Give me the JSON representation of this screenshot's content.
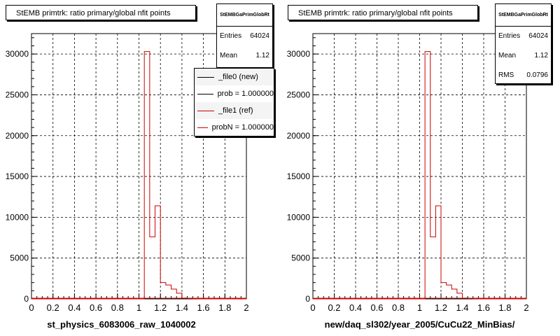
{
  "chart_data": [
    {
      "type": "bar",
      "title": "StEMB primtrk: ratio primary/global nfit points",
      "xlabel": "st_physics_6083006_raw_1040002",
      "ylabel": "",
      "xlim": [
        0,
        2
      ],
      "ylim": [
        0,
        32500
      ],
      "xticks": [
        "0",
        "0.2",
        "0.4",
        "0.6",
        "0.8",
        "1",
        "1.2",
        "1.4",
        "1.6",
        "1.8",
        "2"
      ],
      "yticks": [
        "0",
        "5000",
        "10000",
        "15000",
        "20000",
        "25000",
        "30000"
      ],
      "grid": true,
      "bin_width": 0.05,
      "bin_edges_start": [
        1.0,
        1.05,
        1.1,
        1.15,
        1.2,
        1.25,
        1.3,
        1.35,
        1.4,
        1.45,
        1.5
      ],
      "values": [
        0,
        30300,
        7600,
        11400,
        2000,
        1700,
        1200,
        700,
        100,
        50,
        20
      ],
      "series": [
        {
          "name": "_file0 (new)",
          "color": "#000000"
        },
        {
          "name": "_file1 (ref)",
          "color": "#cc0000"
        }
      ],
      "stats": {
        "header": "StEMBGaPrimGlobRt",
        "entries_label": "Entries",
        "entries": "64024",
        "mean_label": "Mean",
        "mean": "1.12"
      },
      "legend": [
        "_file0 (new)",
        "prob = 1.000000",
        "_file1 (ref)",
        "probN = 1.000000"
      ],
      "legend_position": "top-right"
    },
    {
      "type": "bar",
      "title": "StEMB primtrk: ratio primary/global nfit points",
      "xlabel": "new/daq_sl302/year_2005/CuCu22_MinBias/",
      "ylabel": "",
      "xlim": [
        0,
        2
      ],
      "ylim": [
        0,
        32500
      ],
      "xticks": [
        "0",
        "0.2",
        "0.4",
        "0.6",
        "0.8",
        "1",
        "1.2",
        "1.4",
        "1.6",
        "1.8",
        "2"
      ],
      "yticks": [
        "0",
        "5000",
        "10000",
        "15000",
        "20000",
        "25000",
        "30000"
      ],
      "grid": true,
      "bin_width": 0.05,
      "bin_edges_start": [
        1.0,
        1.05,
        1.1,
        1.15,
        1.2,
        1.25,
        1.3,
        1.35,
        1.4,
        1.45,
        1.5
      ],
      "values": [
        0,
        30300,
        7600,
        11400,
        2000,
        1700,
        1200,
        700,
        100,
        50,
        20
      ],
      "series": [
        {
          "name": "",
          "color": "#cc0000"
        }
      ],
      "stats": {
        "header": "StEMBGaPrimGlobRt",
        "entries_label": "Entries",
        "entries": "64024",
        "mean_label": "Mean",
        "mean": "1.12",
        "rms_label": "RMS",
        "rms": "0.0796"
      }
    }
  ]
}
